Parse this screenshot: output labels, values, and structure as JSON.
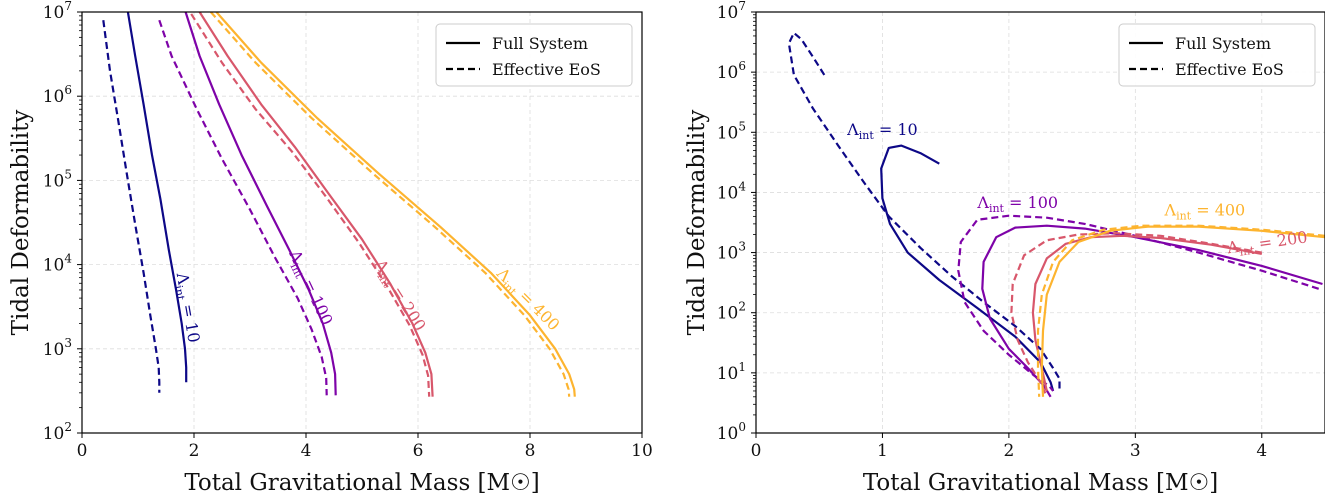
{
  "colors": {
    "lam10": "#0d0887",
    "lam100": "#7e03a8",
    "lam200": "#d8576b",
    "lam400": "#fdb42f",
    "grid": "#dddddd",
    "axis": "#000000"
  },
  "chart_data": [
    {
      "type": "line",
      "xlabel": "Total Gravitational Mass [M☉]",
      "ylabel": "Tidal Deformability",
      "xlim": [
        0,
        10
      ],
      "ylim": [
        100,
        10000000
      ],
      "yscale": "log",
      "grid": true,
      "legend_position": "top-right",
      "xticks": [
        0,
        2,
        4,
        6,
        8,
        10
      ],
      "xtick_labels": [
        "0",
        "2",
        "4",
        "6",
        "8",
        "10"
      ],
      "yticks": [
        100,
        1000,
        10000,
        100000,
        1000000,
        10000000
      ],
      "ytick_labels": [
        [
          "10",
          "2"
        ],
        [
          "10",
          "3"
        ],
        [
          "10",
          "4"
        ],
        [
          "10",
          "5"
        ],
        [
          "10",
          "6"
        ],
        [
          "10",
          "7"
        ]
      ],
      "legend": [
        {
          "label": "Full System",
          "style": "solid"
        },
        {
          "label": "Effective EoS",
          "style": "dashed"
        }
      ],
      "annotations": [
        {
          "text": "Λ",
          "sub": "int",
          "rest": " = 10",
          "color_key": "lam10",
          "x": 1.8,
          "y": 3000,
          "rotate": 80
        },
        {
          "text": "Λ",
          "sub": "int",
          "rest": " = 100",
          "color_key": "lam100",
          "x": 4.0,
          "y": 5000,
          "rotate": 65
        },
        {
          "text": "Λ",
          "sub": "int",
          "rest": " = 200",
          "color_key": "lam200",
          "x": 5.6,
          "y": 4000,
          "rotate": 58
        },
        {
          "text": "Λ",
          "sub": "int",
          "rest": " = 400",
          "color_key": "lam400",
          "x": 7.9,
          "y": 3500,
          "rotate": 45
        }
      ],
      "series": [
        {
          "name": "Λint = 10 (Full System)",
          "color_key": "lam10",
          "style": "solid",
          "x": [
            0.82,
            0.95,
            1.1,
            1.25,
            1.4,
            1.55,
            1.68,
            1.78,
            1.84,
            1.86,
            1.86
          ],
          "y": [
            10000000,
            3000000,
            800000,
            200000,
            60000,
            15000,
            5000,
            2000,
            1000,
            600,
            400
          ]
        },
        {
          "name": "Λint = 10 (Effective EoS)",
          "color_key": "lam10",
          "style": "dashed",
          "x": [
            0.38,
            0.5,
            0.65,
            0.8,
            0.95,
            1.1,
            1.22,
            1.32,
            1.37,
            1.38,
            1.38
          ],
          "y": [
            8000000,
            2000000,
            500000,
            120000,
            30000,
            8000,
            2500,
            1000,
            600,
            400,
            300
          ]
        },
        {
          "name": "Λint = 100 (Full System)",
          "color_key": "lam100",
          "style": "solid",
          "x": [
            1.85,
            2.1,
            2.45,
            2.85,
            3.3,
            3.7,
            4.05,
            4.3,
            4.45,
            4.52,
            4.53
          ],
          "y": [
            10000000,
            3000000,
            800000,
            200000,
            50000,
            15000,
            5000,
            2000,
            900,
            500,
            280
          ]
        },
        {
          "name": "Λint = 100 (Effective EoS)",
          "color_key": "lam100",
          "style": "dashed",
          "x": [
            1.38,
            1.6,
            2.05,
            2.5,
            3.0,
            3.45,
            3.85,
            4.1,
            4.28,
            4.36,
            4.37
          ],
          "y": [
            8000000,
            3000000,
            700000,
            180000,
            45000,
            12000,
            4000,
            1700,
            800,
            450,
            280
          ]
        },
        {
          "name": "Λint = 200 (Full System)",
          "color_key": "lam200",
          "style": "solid",
          "x": [
            2.1,
            2.6,
            3.2,
            3.8,
            4.4,
            5.0,
            5.5,
            5.9,
            6.13,
            6.24,
            6.26
          ],
          "y": [
            10000000,
            3000000,
            800000,
            250000,
            70000,
            20000,
            6000,
            2000,
            900,
            500,
            270
          ]
        },
        {
          "name": "Λint = 200 (Effective EoS)",
          "color_key": "lam200",
          "style": "dashed",
          "x": [
            1.95,
            2.5,
            3.1,
            3.75,
            4.35,
            4.95,
            5.45,
            5.85,
            6.08,
            6.18,
            6.2
          ],
          "y": [
            9500000,
            2500000,
            700000,
            220000,
            65000,
            18000,
            5500,
            1900,
            850,
            480,
            270
          ]
        },
        {
          "name": "Λint = 400 (Full System)",
          "color_key": "lam400",
          "style": "solid",
          "x": [
            2.4,
            3.2,
            4.2,
            5.3,
            6.4,
            7.3,
            8.0,
            8.45,
            8.7,
            8.79,
            8.8
          ],
          "y": [
            10000000,
            2500000,
            550000,
            120000,
            28000,
            8000,
            2500,
            1000,
            500,
            330,
            270
          ]
        },
        {
          "name": "Λint = 400 (Effective EoS)",
          "color_key": "lam400",
          "style": "dashed",
          "x": [
            2.3,
            3.1,
            4.1,
            5.2,
            6.3,
            7.2,
            7.9,
            8.35,
            8.6,
            8.69,
            8.7
          ],
          "y": [
            10000000,
            2500000,
            550000,
            120000,
            28000,
            8000,
            2500,
            1000,
            500,
            330,
            270
          ]
        }
      ]
    },
    {
      "type": "line",
      "xlabel": "Total Gravitational Mass [M☉]",
      "ylabel": "Tidal Deformability",
      "xlim": [
        0,
        4.5
      ],
      "ylim": [
        1,
        10000000
      ],
      "yscale": "log",
      "grid": true,
      "legend_position": "top-right",
      "xticks": [
        0,
        1,
        2,
        3,
        4
      ],
      "xtick_labels": [
        "0",
        "1",
        "2",
        "3",
        "4"
      ],
      "yticks": [
        1,
        10,
        100,
        1000,
        10000,
        100000,
        1000000,
        10000000
      ],
      "ytick_labels": [
        [
          "10",
          "0"
        ],
        [
          "10",
          "1"
        ],
        [
          "10",
          "2"
        ],
        [
          "10",
          "3"
        ],
        [
          "10",
          "4"
        ],
        [
          "10",
          "5"
        ],
        [
          "10",
          "6"
        ],
        [
          "10",
          "7"
        ]
      ],
      "legend": [
        {
          "label": "Full System",
          "style": "solid"
        },
        {
          "label": "Effective EoS",
          "style": "dashed"
        }
      ],
      "annotations": [
        {
          "text": "Λ",
          "sub": "int",
          "rest": " = 10",
          "color_key": "lam10",
          "x": 1.0,
          "y": 90000,
          "rotate": 0
        },
        {
          "text": "Λ",
          "sub": "int",
          "rest": " = 100",
          "color_key": "lam100",
          "x": 2.07,
          "y": 5500,
          "rotate": 0
        },
        {
          "text": "Λ",
          "sub": "int",
          "rest": " = 400",
          "color_key": "lam400",
          "x": 3.55,
          "y": 4100,
          "rotate": 0
        },
        {
          "text": "Λ",
          "sub": "int",
          "rest": " = 200",
          "color_key": "lam200",
          "x": 4.05,
          "y": 1200,
          "rotate": -8
        }
      ],
      "series": [
        {
          "name": "Λint = 10 (Effective EoS)",
          "color_key": "lam10",
          "style": "dashed",
          "x": [
            0.54,
            0.45,
            0.36,
            0.3,
            0.26,
            0.3,
            0.45,
            0.65,
            0.85,
            1.05,
            1.3,
            1.55,
            1.8,
            2.05,
            2.25,
            2.35,
            2.4,
            2.4
          ],
          "y": [
            900000,
            1800000,
            3500000,
            4500000,
            3000000,
            900000,
            250000,
            60000,
            15000,
            4000,
            1200,
            400,
            150,
            60,
            25,
            12,
            8,
            5
          ]
        },
        {
          "name": "Λint = 10 (Full System)",
          "color_key": "lam10",
          "style": "solid",
          "x": [
            1.45,
            1.3,
            1.15,
            1.05,
            0.99,
            1.0,
            1.06,
            1.2,
            1.45,
            1.75,
            2.05,
            2.25,
            2.33,
            2.35
          ],
          "y": [
            30000,
            45000,
            60000,
            55000,
            25000,
            8000,
            3000,
            1000,
            350,
            120,
            40,
            15,
            7,
            5
          ]
        },
        {
          "name": "Λint = 100 (Effective EoS)",
          "color_key": "lam100",
          "style": "dashed",
          "x": [
            4.45,
            4.0,
            3.5,
            3.0,
            2.6,
            2.3,
            2.0,
            1.75,
            1.62,
            1.6,
            1.65,
            1.8,
            2.0,
            2.2,
            2.32,
            2.35
          ],
          "y": [
            250,
            500,
            1000,
            1900,
            3000,
            3800,
            4100,
            3500,
            1500,
            500,
            150,
            50,
            20,
            9,
            6,
            5
          ]
        },
        {
          "name": "Λint = 100 (Full System)",
          "color_key": "lam100",
          "style": "solid",
          "x": [
            4.48,
            4.0,
            3.5,
            3.0,
            2.6,
            2.3,
            2.05,
            1.9,
            1.8,
            1.79,
            1.85,
            2.0,
            2.15,
            2.28,
            2.33
          ],
          "y": [
            300,
            600,
            1100,
            1800,
            2500,
            2800,
            2600,
            1800,
            700,
            250,
            80,
            25,
            12,
            6,
            4
          ]
        },
        {
          "name": "Λint = 200 (Effective EoS)",
          "color_key": "lam200",
          "style": "dashed",
          "x": [
            4.0,
            3.6,
            3.2,
            2.85,
            2.55,
            2.3,
            2.12,
            2.03,
            2.02,
            2.07,
            2.15,
            2.25,
            2.3
          ],
          "y": [
            1000,
            1400,
            1900,
            2100,
            2000,
            1600,
            900,
            300,
            100,
            35,
            15,
            7,
            4
          ]
        },
        {
          "name": "Λint = 200 (Full System)",
          "color_key": "lam200",
          "style": "solid",
          "x": [
            4.0,
            3.6,
            3.2,
            2.9,
            2.65,
            2.45,
            2.3,
            2.21,
            2.19,
            2.21,
            2.26,
            2.3
          ],
          "y": [
            950,
            1350,
            1750,
            1900,
            1800,
            1400,
            800,
            300,
            100,
            35,
            12,
            5
          ]
        },
        {
          "name": "Λint = 400 (Full System)",
          "color_key": "lam400",
          "style": "solid",
          "x": [
            4.5,
            4.0,
            3.5,
            3.1,
            2.8,
            2.55,
            2.4,
            2.3,
            2.27,
            2.26,
            2.27
          ],
          "y": [
            1800,
            2300,
            2700,
            2700,
            2300,
            1500,
            700,
            200,
            50,
            12,
            4
          ]
        },
        {
          "name": "Λint = 400 (Effective EoS)",
          "color_key": "lam400",
          "style": "dashed",
          "x": [
            4.5,
            4.0,
            3.5,
            3.05,
            2.75,
            2.5,
            2.35,
            2.26,
            2.23,
            2.23,
            2.24
          ],
          "y": [
            1900,
            2400,
            2800,
            2800,
            2400,
            1600,
            700,
            200,
            50,
            12,
            4
          ]
        }
      ]
    }
  ]
}
